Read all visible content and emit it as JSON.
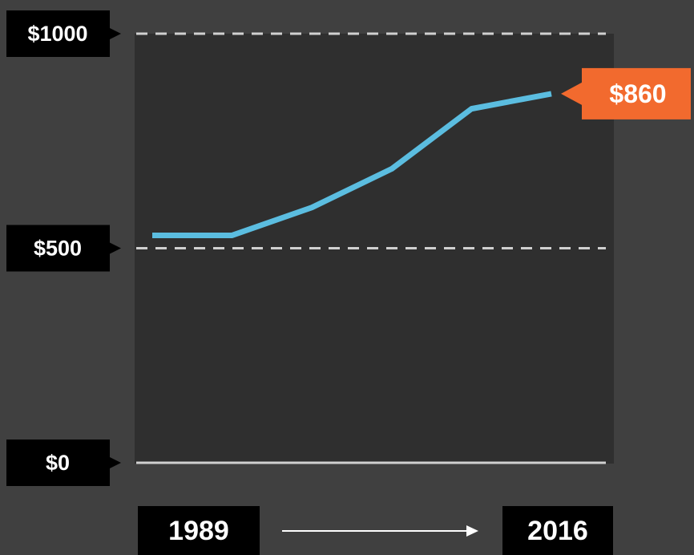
{
  "chart_data": {
    "type": "line",
    "categories": [
      "1989",
      null,
      null,
      null,
      null,
      "2016"
    ],
    "series": [
      {
        "color": "#5bbde0",
        "values": [
          530,
          530,
          595,
          685,
          825,
          860
        ],
        "value_labels": [
          null,
          null,
          null,
          null,
          null,
          "$860"
        ]
      }
    ],
    "ylim": [
      0,
      1000
    ],
    "yticks": [
      {
        "value": 0,
        "label": "$0"
      },
      {
        "value": 500,
        "label": "$500"
      },
      {
        "value": 1000,
        "label": "$1000"
      }
    ],
    "grid": true,
    "label_color": "#f26a2e"
  }
}
